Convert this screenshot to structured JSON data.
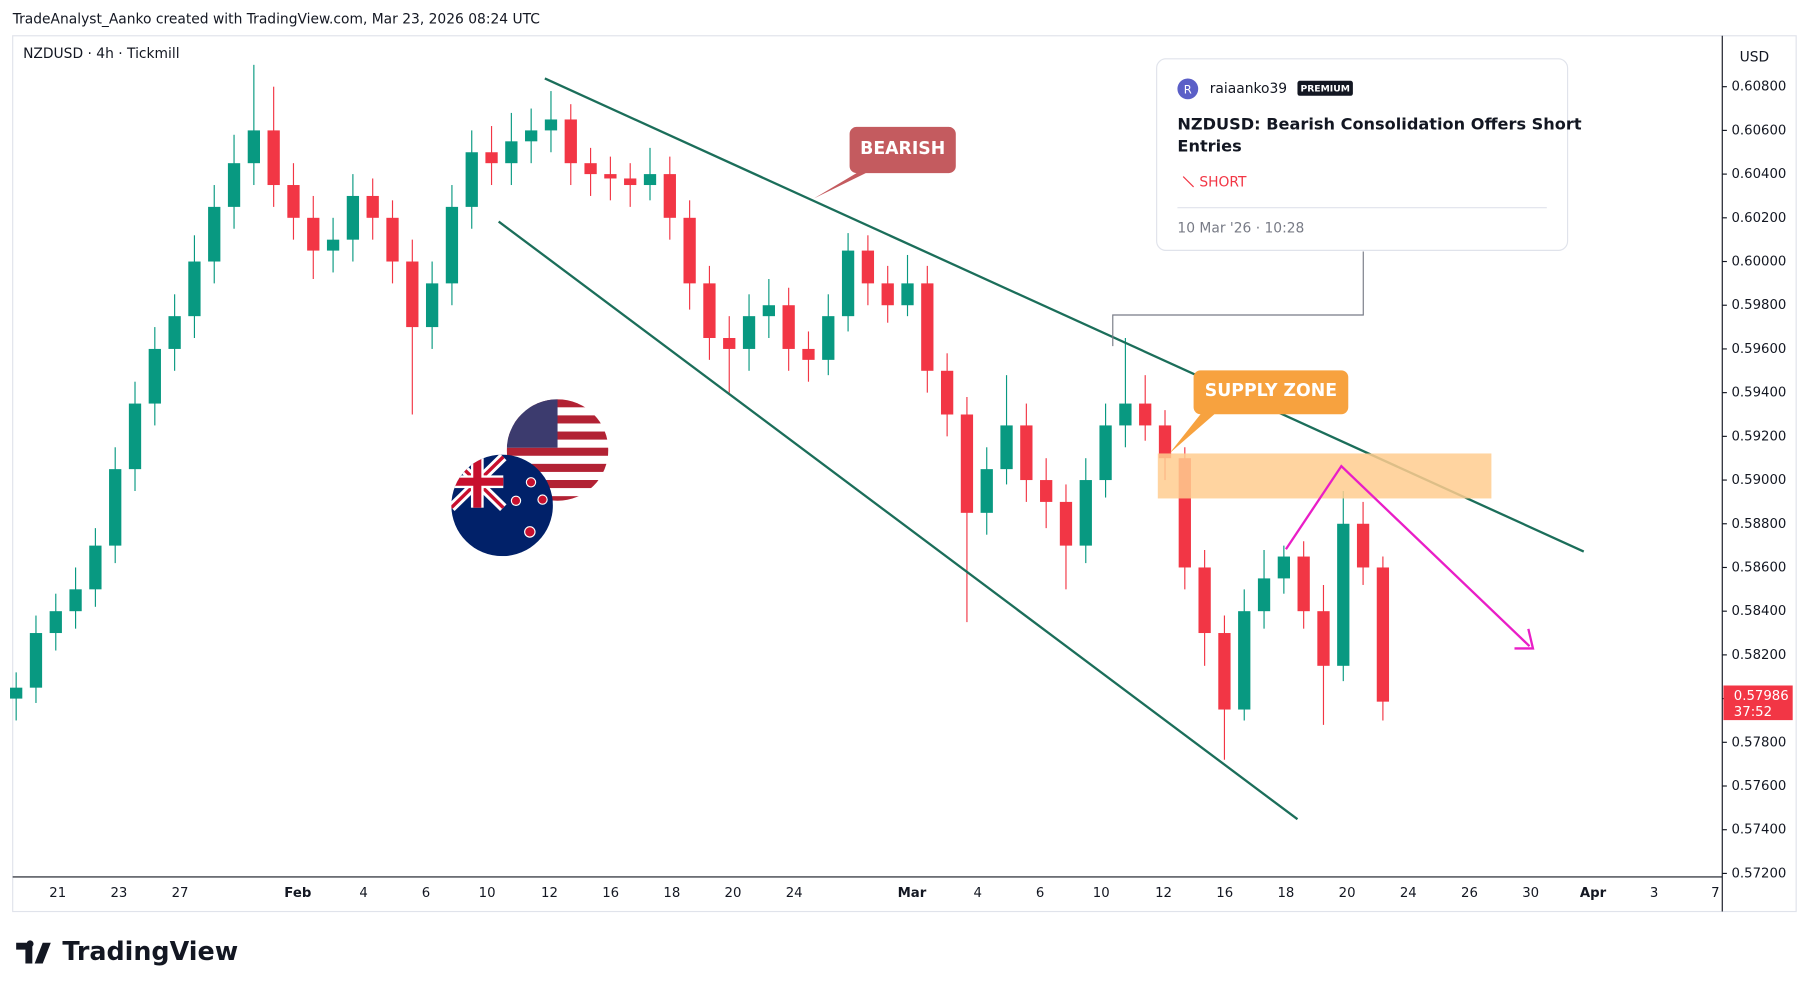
{
  "chart_data": {
    "type": "candlestick",
    "header": "TradeAnalyst_Aanko created with TradingView.com, Mar 23, 2026 08:24 UTC",
    "title": "NZDUSD · 4h · Tickmill",
    "y_axis_label": "USD",
    "up_color": "#089981",
    "down_color": "#f23645",
    "open": [
      0.58,
      0.5805,
      0.583,
      0.584,
      0.585,
      0.587,
      0.5905,
      0.5935,
      0.596,
      0.5975,
      0.6,
      0.6025,
      0.6045,
      0.606,
      0.6035,
      0.602,
      0.6005,
      0.601,
      0.603,
      0.602,
      0.6,
      0.597,
      0.599,
      0.6025,
      0.605,
      0.6045,
      0.6055,
      0.606,
      0.6065,
      0.6045,
      0.604,
      0.6038,
      0.6035,
      0.604,
      0.602,
      0.599,
      0.5965,
      0.596,
      0.5975,
      0.598,
      0.596,
      0.5955,
      0.5975,
      0.6005,
      0.599,
      0.598,
      0.599,
      0.595,
      0.593,
      0.5885,
      0.5905,
      0.5925,
      0.59,
      0.589,
      0.587,
      0.59,
      0.5925,
      0.5935,
      0.5925,
      0.591,
      0.586,
      0.583,
      0.5795,
      0.584,
      0.5855,
      0.5865,
      0.584,
      0.5815,
      0.588,
      0.586
    ],
    "high": [
      0.5812,
      0.5838,
      0.5848,
      0.586,
      0.5878,
      0.5915,
      0.5945,
      0.597,
      0.5985,
      0.6012,
      0.6035,
      0.6058,
      0.609,
      0.608,
      0.6045,
      0.603,
      0.602,
      0.604,
      0.6038,
      0.6028,
      0.601,
      0.6,
      0.6035,
      0.606,
      0.6062,
      0.6068,
      0.607,
      0.6078,
      0.6072,
      0.6052,
      0.6048,
      0.6045,
      0.6052,
      0.6048,
      0.6028,
      0.5998,
      0.5975,
      0.5985,
      0.5992,
      0.5988,
      0.5968,
      0.5985,
      0.6013,
      0.6012,
      0.5998,
      0.6003,
      0.5998,
      0.5958,
      0.5938,
      0.5915,
      0.5948,
      0.5935,
      0.591,
      0.5898,
      0.591,
      0.5935,
      0.5965,
      0.5948,
      0.5932,
      0.5915,
      0.5868,
      0.5838,
      0.585,
      0.5868,
      0.587,
      0.5872,
      0.5852,
      0.5895,
      0.589,
      0.5865
    ],
    "low": [
      0.579,
      0.5798,
      0.5822,
      0.5832,
      0.5842,
      0.5862,
      0.5895,
      0.5925,
      0.595,
      0.5965,
      0.599,
      0.6015,
      0.6035,
      0.6025,
      0.601,
      0.5992,
      0.5995,
      0.6,
      0.601,
      0.599,
      0.593,
      0.596,
      0.598,
      0.6015,
      0.6035,
      0.6035,
      0.6045,
      0.605,
      0.6035,
      0.603,
      0.6028,
      0.6025,
      0.6028,
      0.601,
      0.5978,
      0.5955,
      0.594,
      0.595,
      0.5965,
      0.595,
      0.5945,
      0.5948,
      0.5968,
      0.598,
      0.5972,
      0.5975,
      0.594,
      0.592,
      0.5835,
      0.5875,
      0.5898,
      0.589,
      0.5878,
      0.585,
      0.5862,
      0.5892,
      0.5915,
      0.5918,
      0.59,
      0.585,
      0.5815,
      0.5772,
      0.579,
      0.5832,
      0.5848,
      0.5832,
      0.5788,
      0.5808,
      0.5852,
      0.579
    ],
    "close": [
      0.5805,
      0.583,
      0.584,
      0.585,
      0.587,
      0.5905,
      0.5935,
      0.596,
      0.5975,
      0.6,
      0.6025,
      0.6045,
      0.606,
      0.6035,
      0.602,
      0.6005,
      0.601,
      0.603,
      0.602,
      0.6,
      0.597,
      0.599,
      0.6025,
      0.605,
      0.6045,
      0.6055,
      0.606,
      0.6065,
      0.6045,
      0.604,
      0.6038,
      0.6035,
      0.604,
      0.602,
      0.599,
      0.5965,
      0.596,
      0.5975,
      0.598,
      0.596,
      0.5955,
      0.5975,
      0.6005,
      0.599,
      0.598,
      0.599,
      0.595,
      0.593,
      0.5885,
      0.5905,
      0.5925,
      0.59,
      0.589,
      0.587,
      0.59,
      0.5925,
      0.5935,
      0.5925,
      0.591,
      0.586,
      0.583,
      0.5795,
      0.584,
      0.5855,
      0.5865,
      0.584,
      0.5815,
      0.588,
      0.586,
      0.57986
    ],
    "countdown": "37:52",
    "ylim": [
      0.57184,
      0.61033
    ],
    "yticks": [
      {
        "value": 0.572,
        "label": "0.57200"
      },
      {
        "value": 0.574,
        "label": "0.57400"
      },
      {
        "value": 0.576,
        "label": "0.57600"
      },
      {
        "value": 0.578,
        "label": "0.57800"
      },
      {
        "value": 0.58,
        "label": "0.58000"
      },
      {
        "value": 0.582,
        "label": "0.58200"
      },
      {
        "value": 0.584,
        "label": "0.58400"
      },
      {
        "value": 0.586,
        "label": "0.58600"
      },
      {
        "value": 0.588,
        "label": "0.58800"
      },
      {
        "value": 0.59,
        "label": "0.59000"
      },
      {
        "value": 0.592,
        "label": "0.59200"
      },
      {
        "value": 0.594,
        "label": "0.59400"
      },
      {
        "value": 0.596,
        "label": "0.59600"
      },
      {
        "value": 0.598,
        "label": "0.59800"
      },
      {
        "value": 0.6,
        "label": "0.60000"
      },
      {
        "value": 0.602,
        "label": "0.60200"
      },
      {
        "value": 0.604,
        "label": "0.60400"
      },
      {
        "value": 0.606,
        "label": "0.60600"
      },
      {
        "value": 0.608,
        "label": "0.60800"
      }
    ],
    "x_labels": [
      "21",
      "23",
      "27",
      "Feb",
      "4",
      "6",
      "10",
      "12",
      "16",
      "18",
      "20",
      "24",
      "Mar",
      "4",
      "6",
      "10",
      "12",
      "16",
      "18",
      "20",
      "24",
      "26",
      "30",
      "Apr",
      "3",
      "7"
    ],
    "annotations": [
      "BEARISH",
      "SUPPLY ZONE"
    ],
    "idea": {
      "author": "raiaanko39",
      "avatar": "R",
      "badge": "PREMIUM",
      "title": "NZDUSD: Bearish Consolidation Offers Short Entries",
      "direction": "SHORT",
      "date": "10 Mar '26 · 10:28"
    },
    "brand": "TradingView"
  }
}
